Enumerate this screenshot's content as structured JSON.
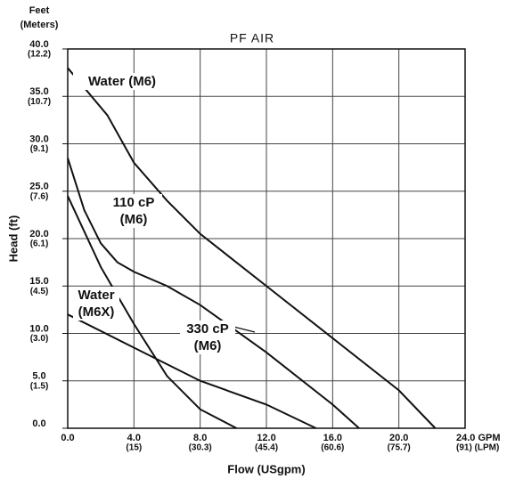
{
  "chart_data": {
    "type": "line",
    "title": "PF AIR",
    "y_unit_label": "Feet",
    "y_unit_sublabel": "(Meters)",
    "xlabel": "Flow (USgpm)",
    "ylabel": "Head (ft)",
    "xlim": [
      0,
      24
    ],
    "ylim": [
      0,
      40
    ],
    "xticks": [
      {
        "value": 0,
        "label": "0.0"
      },
      {
        "value": 4,
        "label": "4.0"
      },
      {
        "value": 8,
        "label": "8.0"
      },
      {
        "value": 12,
        "label": "12.0"
      },
      {
        "value": 16,
        "label": "16.0"
      },
      {
        "value": 20,
        "label": "20.0"
      },
      {
        "value": 24,
        "label": "24.0 GPM"
      }
    ],
    "xtick_sublabels": [
      null,
      "(15)",
      "(30.3)",
      "(45.4)",
      "(60.6)",
      "(75.7)",
      "(91) (LPM)"
    ],
    "yticks": [
      {
        "value": 0,
        "label": "0.0"
      },
      {
        "value": 5,
        "label": "5.0"
      },
      {
        "value": 10,
        "label": "10.0"
      },
      {
        "value": 15,
        "label": "15.0"
      },
      {
        "value": 20,
        "label": "20.0"
      },
      {
        "value": 25,
        "label": "25.0"
      },
      {
        "value": 30,
        "label": "30.0"
      },
      {
        "value": 35,
        "label": "35.0"
      },
      {
        "value": 40,
        "label": "40.0"
      }
    ],
    "ytick_sublabels": [
      null,
      "(1.5)",
      "(3.0)",
      "(4.5)",
      "(6.1)",
      "(7.6)",
      "(9.1)",
      "(10.7)",
      "(12.2)"
    ],
    "grid": true,
    "series": [
      {
        "name": "Water (M6)",
        "color": "#111111",
        "x": [
          0,
          2.4,
          4,
          6,
          8,
          12,
          16,
          20,
          22.2
        ],
        "values": [
          38,
          33,
          28,
          24,
          20.5,
          15,
          9.5,
          4,
          0
        ]
      },
      {
        "name": "110 cP (M6)",
        "color": "#111111",
        "x": [
          0,
          1,
          2,
          3,
          4,
          6,
          8,
          12,
          16,
          17.6
        ],
        "values": [
          28.5,
          23,
          19.5,
          17.5,
          16.5,
          15,
          13,
          8,
          2.5,
          0
        ]
      },
      {
        "name": "Water (M6X)",
        "color": "#111111",
        "x": [
          0,
          2,
          4,
          6,
          8,
          10.2
        ],
        "values": [
          24.5,
          17,
          11,
          5.5,
          2,
          0
        ]
      },
      {
        "name": "330 cP (M6)",
        "color": "#111111",
        "x": [
          0,
          4,
          8,
          12,
          15
        ],
        "values": [
          12,
          8.5,
          5,
          2.5,
          0
        ]
      }
    ]
  }
}
